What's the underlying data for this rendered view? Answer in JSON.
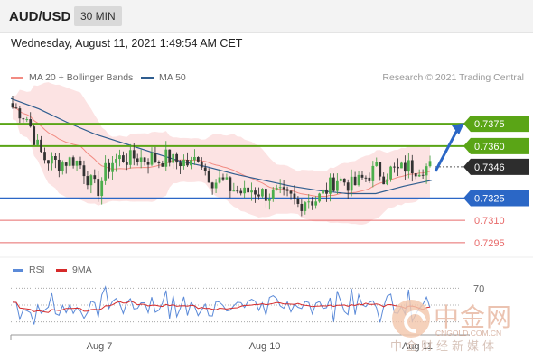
{
  "header": {
    "symbol": "AUD/USD",
    "interval": "30 MIN"
  },
  "datetime": "Wednesday, August 11, 2021 1:49:54 AM CET",
  "legend": {
    "ma20": {
      "label": "MA 20 + Bollinger Bands",
      "color": "#f28b82"
    },
    "ma50": {
      "label": "MA 50",
      "color": "#2f5d8f"
    }
  },
  "credit": "Research © 2021 Trading Central",
  "rsi_legend": {
    "rsi": {
      "label": "RSI",
      "color": "#5b8ad8"
    },
    "ma9": {
      "label": "9MA",
      "color": "#d62a2a"
    }
  },
  "watermark": {
    "name": "中金网",
    "url": "CNGOLD.COM.CN",
    "sub": "中金财经新媒体"
  },
  "chart_data": {
    "type": "candlestick",
    "x_ticks": [
      "Aug 7",
      "Aug 10",
      "Aug 11"
    ],
    "y_range": [
      0.7287,
      0.74
    ],
    "levels": [
      {
        "value": "0.7375",
        "price": 0.7375,
        "kind": "resistance",
        "color": "#5aa516"
      },
      {
        "value": "0.7360",
        "price": 0.736,
        "kind": "resistance",
        "color": "#5aa516"
      },
      {
        "value": "0.7346",
        "price": 0.7346,
        "kind": "current",
        "color": "#2d2d2d"
      },
      {
        "value": "0.7325",
        "price": 0.7325,
        "kind": "pivot",
        "color": "#2b67c6"
      },
      {
        "value": "0.7310",
        "price": 0.731,
        "kind": "support",
        "color": "#e86a6a"
      },
      {
        "value": "0.7295",
        "price": 0.7295,
        "kind": "support",
        "color": "#e86a6a"
      }
    ],
    "close_path": [
      0.7386,
      0.7383,
      0.7378,
      0.7362,
      0.7352,
      0.735,
      0.7348,
      0.735,
      0.7351,
      0.7346,
      0.7336,
      0.733,
      0.7343,
      0.735,
      0.7352,
      0.7351,
      0.7353,
      0.7351,
      0.7352,
      0.735,
      0.7353,
      0.7349,
      0.735,
      0.7347,
      0.7354,
      0.7343,
      0.7336,
      0.7337,
      0.7332,
      0.733,
      0.7328,
      0.7331,
      0.7329,
      0.7327,
      0.7328,
      0.7326,
      0.7325,
      0.732,
      0.7325,
      0.7323,
      0.7327,
      0.7333,
      0.7338,
      0.7336,
      0.7333,
      0.7337,
      0.734,
      0.7345,
      0.734,
      0.7344,
      0.7343,
      0.7347,
      0.7345,
      0.7346,
      0.7346
    ],
    "ma50": [
      0.7392,
      0.7385,
      0.7376,
      0.7368,
      0.7362,
      0.7356,
      0.735,
      0.7346,
      0.7341,
      0.7337,
      0.7333,
      0.733,
      0.7328,
      0.7328,
      0.7333,
      0.7337
    ],
    "projection": {
      "from": 0.7343,
      "to": 0.7375
    },
    "rsi": {
      "level_label": "70",
      "levels": [
        70,
        50,
        30
      ],
      "range": [
        20,
        80
      ]
    }
  }
}
